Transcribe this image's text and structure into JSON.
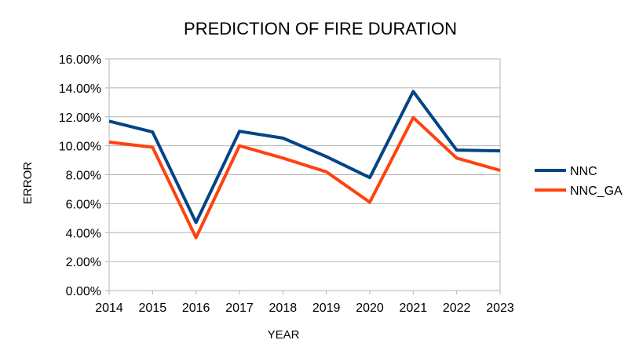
{
  "chart_data": {
    "type": "line",
    "title": "PREDICTION OF FIRE DURATION",
    "xlabel": "YEAR",
    "ylabel": "ERROR",
    "categories": [
      "2014",
      "2015",
      "2016",
      "2017",
      "2018",
      "2019",
      "2020",
      "2021",
      "2022",
      "2023"
    ],
    "ylim": [
      0,
      0.16
    ],
    "y_ticks": [
      0,
      0.02,
      0.04,
      0.06,
      0.08,
      0.1,
      0.12,
      0.14,
      0.16
    ],
    "y_tick_labels": [
      "0.00%",
      "2.00%",
      "4.00%",
      "6.00%",
      "8.00%",
      "10.00%",
      "12.00%",
      "14.00%",
      "16.00%"
    ],
    "grid": true,
    "legend_position": "right",
    "series": [
      {
        "name": "NNC",
        "color": "#004586",
        "values": [
          0.117,
          0.1095,
          0.047,
          0.11,
          0.1053,
          0.0925,
          0.078,
          0.1375,
          0.097,
          0.0965
        ]
      },
      {
        "name": "NNC_GA",
        "color": "#ff420e",
        "values": [
          0.1025,
          0.099,
          0.0365,
          0.1,
          0.0915,
          0.082,
          0.061,
          0.1195,
          0.0915,
          0.083
        ]
      }
    ]
  }
}
